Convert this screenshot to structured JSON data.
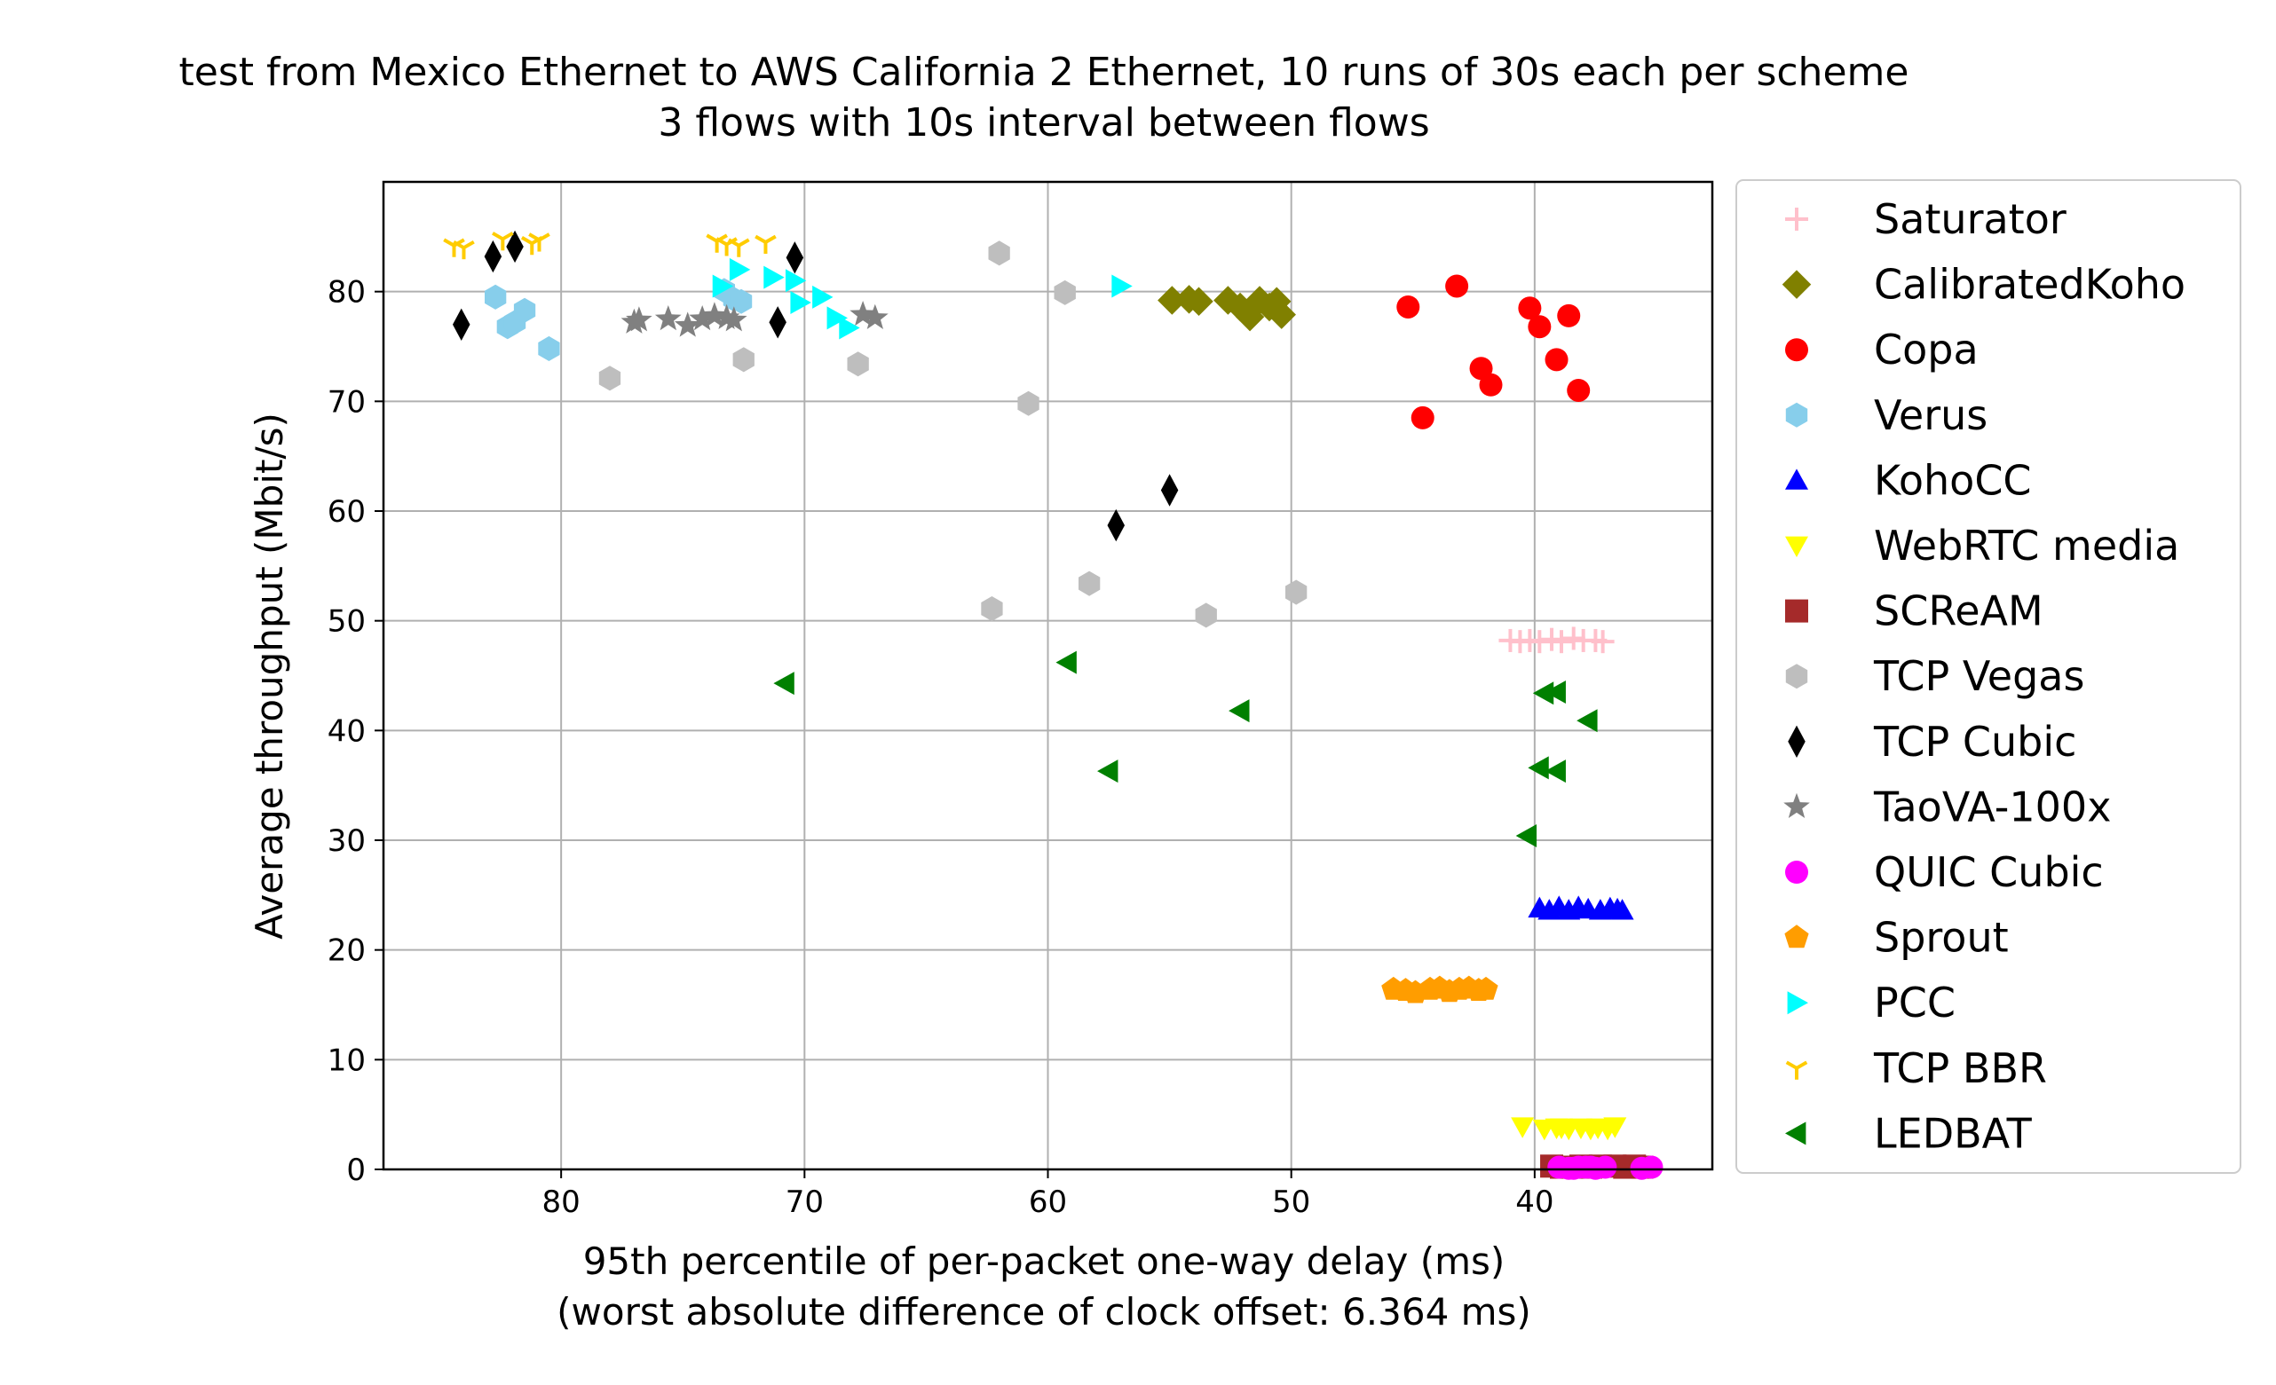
{
  "chart_data": {
    "type": "scatter",
    "title": "test from Mexico Ethernet to AWS California 2 Ethernet, 10 runs of 30s each per scheme",
    "subtitle": "3 flows with 10s interval between flows",
    "xlabel": "95th percentile of per-packet one-way delay (ms)",
    "xlabel2": "(worst absolute difference of clock offset: 6.364 ms)",
    "ylabel": "Average throughput (Mbit/s)",
    "xlim": [
      87.3,
      32.7
    ],
    "ylim": [
      0,
      90
    ],
    "x_inverted": true,
    "grid": true,
    "legend_position": "outside-right",
    "xticks": [
      80,
      70,
      60,
      50,
      40
    ],
    "yticks": [
      0,
      10,
      20,
      30,
      40,
      50,
      60,
      70,
      80
    ],
    "series": [
      {
        "name": "Saturator",
        "marker": "plus",
        "color": "#ffc0cb",
        "points": [
          [
            41,
            48.2
          ],
          [
            40.6,
            48.1
          ],
          [
            40.2,
            48.2
          ],
          [
            39.8,
            48.1
          ],
          [
            39.3,
            48.3
          ],
          [
            38.9,
            48.1
          ],
          [
            38.4,
            48.4
          ],
          [
            38,
            48.2
          ],
          [
            37.5,
            48.2
          ],
          [
            37.2,
            48.1
          ]
        ]
      },
      {
        "name": "CalibratedKoho",
        "marker": "diamond",
        "color": "#808000",
        "points": [
          [
            54.9,
            79.2
          ],
          [
            54.2,
            79.3
          ],
          [
            53.8,
            79.1
          ],
          [
            52.6,
            79.2
          ],
          [
            52.1,
            78.6
          ],
          [
            51.7,
            77.7
          ],
          [
            51.3,
            79.2
          ],
          [
            50.9,
            78.6
          ],
          [
            50.6,
            79.1
          ],
          [
            50.4,
            77.9
          ]
        ]
      },
      {
        "name": "Copa",
        "marker": "circle",
        "color": "#ff0000",
        "points": [
          [
            45.2,
            78.6
          ],
          [
            43.2,
            80.5
          ],
          [
            44.6,
            68.5
          ],
          [
            42.2,
            73
          ],
          [
            41.8,
            71.5
          ],
          [
            40.2,
            78.5
          ],
          [
            39.8,
            76.8
          ],
          [
            39.1,
            73.8
          ],
          [
            38.6,
            77.8
          ],
          [
            38.2,
            71
          ]
        ]
      },
      {
        "name": "Verus",
        "marker": "hexagon",
        "color": "#87ceeb",
        "points": [
          [
            82.7,
            79.5
          ],
          [
            82.2,
            76.8
          ],
          [
            81.9,
            77.2
          ],
          [
            81.5,
            78.3
          ],
          [
            80.5,
            74.8
          ],
          [
            72.9,
            79.3
          ],
          [
            73.3,
            80.1
          ],
          [
            72.6,
            79.1
          ]
        ]
      },
      {
        "name": "KohoCC",
        "marker": "triangle-up",
        "color": "#0000ff",
        "points": [
          [
            39.8,
            23.8
          ],
          [
            39.4,
            23.6
          ],
          [
            39,
            23.9
          ],
          [
            38.6,
            23.6
          ],
          [
            38.2,
            23.9
          ],
          [
            37.8,
            23.7
          ],
          [
            37.3,
            23.6
          ],
          [
            36.9,
            23.8
          ],
          [
            36.6,
            23.7
          ],
          [
            36.4,
            23.6
          ]
        ]
      },
      {
        "name": "WebRTC media",
        "marker": "triangle-down",
        "color": "#ffff00",
        "points": [
          [
            40.5,
            3.9
          ],
          [
            39.6,
            3.7
          ],
          [
            39.1,
            3.8
          ],
          [
            38.6,
            3.7
          ],
          [
            38.1,
            3.8
          ],
          [
            37.7,
            3.7
          ],
          [
            37.4,
            3.8
          ],
          [
            37,
            3.7
          ],
          [
            36.7,
            3.9
          ],
          [
            38.9,
            3.8
          ]
        ]
      },
      {
        "name": "SCReAM",
        "marker": "square",
        "color": "#a52a2a",
        "points": [
          [
            39.3,
            0.3
          ],
          [
            38.9,
            0.2
          ],
          [
            38.5,
            0.2
          ],
          [
            38.1,
            0.3
          ],
          [
            37.7,
            0.2
          ],
          [
            37.3,
            0.3
          ],
          [
            36.7,
            0.3
          ],
          [
            36.3,
            0.2
          ],
          [
            35.9,
            0.3
          ],
          [
            35.6,
            0.2
          ]
        ]
      },
      {
        "name": "TCP Vegas",
        "marker": "hexagon",
        "color": "#bebebe",
        "points": [
          [
            78,
            72.1
          ],
          [
            72.5,
            73.8
          ],
          [
            67.8,
            73.4
          ],
          [
            62,
            83.5
          ],
          [
            59.3,
            79.9
          ],
          [
            60.8,
            69.8
          ],
          [
            62.3,
            51.1
          ],
          [
            58.3,
            53.4
          ],
          [
            53.5,
            50.5
          ],
          [
            49.8,
            52.6
          ]
        ]
      },
      {
        "name": "TCP Cubic",
        "marker": "thin-diamond",
        "color": "#000000",
        "points": [
          [
            84.1,
            77
          ],
          [
            82.8,
            83.2
          ],
          [
            81.9,
            84.1
          ],
          [
            70.4,
            83.1
          ],
          [
            71.1,
            77.2
          ],
          [
            57.2,
            58.7
          ],
          [
            55,
            61.9
          ]
        ]
      },
      {
        "name": "TaoVA-100x",
        "marker": "star",
        "color": "#808080",
        "points": [
          [
            77,
            77.2
          ],
          [
            76.8,
            77.4
          ],
          [
            75.6,
            77.5
          ],
          [
            74.8,
            76.9
          ],
          [
            74.2,
            77.5
          ],
          [
            73.7,
            77.8
          ],
          [
            73.2,
            77.6
          ],
          [
            72.9,
            77.4
          ],
          [
            67.6,
            77.9
          ],
          [
            67.1,
            77.6
          ]
        ]
      },
      {
        "name": "QUIC Cubic",
        "marker": "circle",
        "color": "#ff00ff",
        "points": [
          [
            39,
            0.2
          ],
          [
            38.6,
            0.1
          ],
          [
            38.2,
            0.2
          ],
          [
            37.9,
            0.2
          ],
          [
            37.5,
            0.1
          ],
          [
            37.1,
            0.2
          ],
          [
            35.6,
            0.1
          ],
          [
            35.2,
            0.2
          ],
          [
            38.4,
            0.1
          ],
          [
            37.7,
            0.2
          ]
        ]
      },
      {
        "name": "Sprout",
        "marker": "pentagon",
        "color": "#ff9d00",
        "points": [
          [
            45.8,
            16.4
          ],
          [
            45.3,
            16.3
          ],
          [
            44.9,
            16.1
          ],
          [
            44.3,
            16.4
          ],
          [
            43.9,
            16.5
          ],
          [
            43.5,
            16.2
          ],
          [
            43.1,
            16.4
          ],
          [
            42.7,
            16.5
          ],
          [
            42.3,
            16.3
          ],
          [
            42,
            16.4
          ]
        ]
      },
      {
        "name": "PCC",
        "marker": "triangle-right",
        "color": "#00ffff",
        "points": [
          [
            73.4,
            80.5
          ],
          [
            72.7,
            82
          ],
          [
            71.3,
            81.3
          ],
          [
            70.4,
            81
          ],
          [
            70.2,
            79
          ],
          [
            69.3,
            79.5
          ],
          [
            68.7,
            77.6
          ],
          [
            68.2,
            76.7
          ],
          [
            57,
            80.5
          ]
        ]
      },
      {
        "name": "TCP BBR",
        "marker": "tri-down",
        "color": "#ffcc00",
        "points": [
          [
            84.4,
            84.2
          ],
          [
            84,
            84
          ],
          [
            82.4,
            84.8
          ],
          [
            81.2,
            84.4
          ],
          [
            80.9,
            84.7
          ],
          [
            73.6,
            84.6
          ],
          [
            73.2,
            84.3
          ],
          [
            72.7,
            84.2
          ],
          [
            71.6,
            84.5
          ]
        ]
      },
      {
        "name": "LEDBAT",
        "marker": "triangle-left",
        "color": "#008000",
        "points": [
          [
            70.8,
            44.3
          ],
          [
            59.2,
            46.2
          ],
          [
            57.5,
            36.3
          ],
          [
            52.1,
            41.8
          ],
          [
            39.6,
            43.4
          ],
          [
            39.1,
            43.5
          ],
          [
            37.8,
            40.9
          ],
          [
            39.8,
            36.6
          ],
          [
            39.1,
            36.3
          ],
          [
            40.3,
            30.4
          ]
        ]
      }
    ]
  }
}
